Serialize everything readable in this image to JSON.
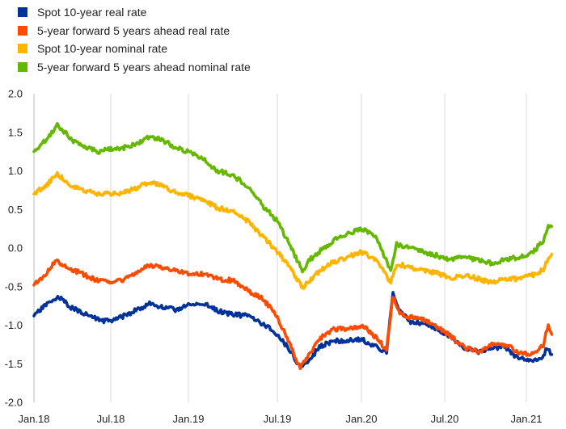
{
  "chart_data": {
    "type": "line",
    "title": "",
    "xlabel": "",
    "ylabel": "",
    "ylim": [
      -2.0,
      2.0
    ],
    "y_ticks": [
      "2.0",
      "1.5",
      "1.0",
      "0.5",
      "0.0",
      "-0.5",
      "-1.0",
      "-1.5",
      "-2.0"
    ],
    "x_ticks": [
      "Jan.18",
      "Jul.18",
      "Jan.19",
      "Jul.19",
      "Jan.20",
      "Jul.20",
      "Jan.21"
    ],
    "grid": {
      "vertical": true,
      "horizontal": false
    },
    "legend_position": "top-left",
    "series": [
      {
        "name": "Spot 10-year real rate",
        "color": "#003299",
        "points": [
          [
            "2018-01-01",
            -0.88
          ],
          [
            "2018-02-01",
            -0.72
          ],
          [
            "2018-03-01",
            -0.64
          ],
          [
            "2018-04-01",
            -0.78
          ],
          [
            "2018-05-01",
            -0.85
          ],
          [
            "2018-06-01",
            -0.93
          ],
          [
            "2018-07-01",
            -0.95
          ],
          [
            "2018-08-01",
            -0.88
          ],
          [
            "2018-09-01",
            -0.8
          ],
          [
            "2018-10-01",
            -0.72
          ],
          [
            "2018-11-01",
            -0.77
          ],
          [
            "2018-12-01",
            -0.8
          ],
          [
            "2019-01-01",
            -0.74
          ],
          [
            "2019-02-01",
            -0.72
          ],
          [
            "2019-03-01",
            -0.81
          ],
          [
            "2019-04-01",
            -0.86
          ],
          [
            "2019-05-01",
            -0.88
          ],
          [
            "2019-06-01",
            -0.98
          ],
          [
            "2019-07-01",
            -1.12
          ],
          [
            "2019-08-01",
            -1.35
          ],
          [
            "2019-08-20",
            -1.55
          ],
          [
            "2019-09-10",
            -1.45
          ],
          [
            "2019-10-01",
            -1.28
          ],
          [
            "2019-11-01",
            -1.2
          ],
          [
            "2019-12-01",
            -1.2
          ],
          [
            "2020-01-01",
            -1.18
          ],
          [
            "2020-02-01",
            -1.28
          ],
          [
            "2020-02-25",
            -1.35
          ],
          [
            "2020-03-10",
            -0.58
          ],
          [
            "2020-03-25",
            -0.82
          ],
          [
            "2020-04-15",
            -0.95
          ],
          [
            "2020-05-15",
            -0.98
          ],
          [
            "2020-06-15",
            -1.05
          ],
          [
            "2020-07-15",
            -1.15
          ],
          [
            "2020-08-15",
            -1.3
          ],
          [
            "2020-09-15",
            -1.35
          ],
          [
            "2020-10-15",
            -1.28
          ],
          [
            "2020-11-15",
            -1.3
          ],
          [
            "2020-12-15",
            -1.43
          ],
          [
            "2021-01-15",
            -1.48
          ],
          [
            "2021-02-05",
            -1.4
          ],
          [
            "2021-02-12",
            -1.28
          ],
          [
            "2021-02-22",
            -1.38
          ]
        ]
      },
      {
        "name": "5-year forward 5 years ahead real rate",
        "color": "#ff4b00",
        "points": [
          [
            "2018-01-01",
            -0.48
          ],
          [
            "2018-02-01",
            -0.32
          ],
          [
            "2018-02-20",
            -0.16
          ],
          [
            "2018-03-15",
            -0.22
          ],
          [
            "2018-04-01",
            -0.28
          ],
          [
            "2018-05-01",
            -0.35
          ],
          [
            "2018-06-01",
            -0.43
          ],
          [
            "2018-07-01",
            -0.44
          ],
          [
            "2018-08-01",
            -0.42
          ],
          [
            "2018-09-01",
            -0.32
          ],
          [
            "2018-10-01",
            -0.22
          ],
          [
            "2018-11-01",
            -0.25
          ],
          [
            "2018-12-01",
            -0.28
          ],
          [
            "2019-01-01",
            -0.33
          ],
          [
            "2019-02-01",
            -0.33
          ],
          [
            "2019-03-01",
            -0.4
          ],
          [
            "2019-04-01",
            -0.42
          ],
          [
            "2019-05-01",
            -0.55
          ],
          [
            "2019-06-01",
            -0.65
          ],
          [
            "2019-07-01",
            -0.9
          ],
          [
            "2019-08-01",
            -1.3
          ],
          [
            "2019-08-20",
            -1.55
          ],
          [
            "2019-09-10",
            -1.38
          ],
          [
            "2019-10-01",
            -1.18
          ],
          [
            "2019-11-01",
            -1.05
          ],
          [
            "2019-12-01",
            -1.05
          ],
          [
            "2020-01-01",
            -1.0
          ],
          [
            "2020-02-01",
            -1.15
          ],
          [
            "2020-02-25",
            -1.32
          ],
          [
            "2020-03-10",
            -0.62
          ],
          [
            "2020-03-25",
            -0.85
          ],
          [
            "2020-04-15",
            -0.9
          ],
          [
            "2020-05-15",
            -0.92
          ],
          [
            "2020-06-15",
            -1.02
          ],
          [
            "2020-07-15",
            -1.15
          ],
          [
            "2020-08-15",
            -1.28
          ],
          [
            "2020-09-15",
            -1.35
          ],
          [
            "2020-10-15",
            -1.25
          ],
          [
            "2020-11-15",
            -1.26
          ],
          [
            "2020-12-15",
            -1.35
          ],
          [
            "2021-01-15",
            -1.38
          ],
          [
            "2021-02-05",
            -1.25
          ],
          [
            "2021-02-15",
            -0.98
          ],
          [
            "2021-02-22",
            -1.12
          ]
        ]
      },
      {
        "name": "Spot 10-year nominal rate",
        "color": "#ffb400",
        "points": [
          [
            "2018-01-01",
            0.7
          ],
          [
            "2018-02-01",
            0.82
          ],
          [
            "2018-02-25",
            0.96
          ],
          [
            "2018-03-15",
            0.88
          ],
          [
            "2018-04-01",
            0.8
          ],
          [
            "2018-05-01",
            0.75
          ],
          [
            "2018-06-01",
            0.7
          ],
          [
            "2018-07-01",
            0.7
          ],
          [
            "2018-08-01",
            0.72
          ],
          [
            "2018-09-01",
            0.78
          ],
          [
            "2018-10-01",
            0.86
          ],
          [
            "2018-11-01",
            0.8
          ],
          [
            "2018-12-01",
            0.72
          ],
          [
            "2019-01-01",
            0.68
          ],
          [
            "2019-02-01",
            0.62
          ],
          [
            "2019-03-01",
            0.52
          ],
          [
            "2019-04-01",
            0.48
          ],
          [
            "2019-05-01",
            0.35
          ],
          [
            "2019-06-01",
            0.15
          ],
          [
            "2019-07-01",
            -0.05
          ],
          [
            "2019-08-01",
            -0.28
          ],
          [
            "2019-08-25",
            -0.52
          ],
          [
            "2019-09-10",
            -0.42
          ],
          [
            "2019-10-01",
            -0.3
          ],
          [
            "2019-11-01",
            -0.18
          ],
          [
            "2019-12-01",
            -0.12
          ],
          [
            "2020-01-01",
            -0.05
          ],
          [
            "2020-02-01",
            -0.15
          ],
          [
            "2020-03-05",
            -0.45
          ],
          [
            "2020-03-18",
            -0.2
          ],
          [
            "2020-04-15",
            -0.25
          ],
          [
            "2020-05-15",
            -0.3
          ],
          [
            "2020-06-15",
            -0.32
          ],
          [
            "2020-07-15",
            -0.4
          ],
          [
            "2020-08-15",
            -0.35
          ],
          [
            "2020-09-15",
            -0.4
          ],
          [
            "2020-10-15",
            -0.45
          ],
          [
            "2020-11-15",
            -0.4
          ],
          [
            "2020-12-15",
            -0.4
          ],
          [
            "2021-01-15",
            -0.35
          ],
          [
            "2021-02-05",
            -0.28
          ],
          [
            "2021-02-15",
            -0.12
          ],
          [
            "2021-02-22",
            -0.08
          ]
        ]
      },
      {
        "name": "5-year forward 5 years ahead nominal rate",
        "color": "#65b800",
        "points": [
          [
            "2018-01-01",
            1.25
          ],
          [
            "2018-02-01",
            1.42
          ],
          [
            "2018-02-25",
            1.6
          ],
          [
            "2018-03-15",
            1.5
          ],
          [
            "2018-04-01",
            1.4
          ],
          [
            "2018-05-01",
            1.32
          ],
          [
            "2018-06-01",
            1.25
          ],
          [
            "2018-07-01",
            1.28
          ],
          [
            "2018-08-01",
            1.3
          ],
          [
            "2018-09-01",
            1.35
          ],
          [
            "2018-10-01",
            1.45
          ],
          [
            "2018-11-01",
            1.4
          ],
          [
            "2018-12-01",
            1.3
          ],
          [
            "2019-01-01",
            1.25
          ],
          [
            "2019-02-01",
            1.15
          ],
          [
            "2019-03-01",
            1.0
          ],
          [
            "2019-04-01",
            0.95
          ],
          [
            "2019-05-01",
            0.8
          ],
          [
            "2019-06-01",
            0.55
          ],
          [
            "2019-07-01",
            0.35
          ],
          [
            "2019-08-01",
            0.0
          ],
          [
            "2019-08-25",
            -0.3
          ],
          [
            "2019-09-10",
            -0.15
          ],
          [
            "2019-10-01",
            -0.05
          ],
          [
            "2019-11-01",
            0.1
          ],
          [
            "2019-12-01",
            0.18
          ],
          [
            "2020-01-01",
            0.25
          ],
          [
            "2020-02-01",
            0.15
          ],
          [
            "2020-03-05",
            -0.3
          ],
          [
            "2020-03-18",
            0.05
          ],
          [
            "2020-04-15",
            0.0
          ],
          [
            "2020-05-15",
            -0.05
          ],
          [
            "2020-06-15",
            -0.1
          ],
          [
            "2020-07-15",
            -0.15
          ],
          [
            "2020-08-15",
            -0.12
          ],
          [
            "2020-09-15",
            -0.15
          ],
          [
            "2020-10-15",
            -0.2
          ],
          [
            "2020-11-15",
            -0.15
          ],
          [
            "2020-12-15",
            -0.12
          ],
          [
            "2021-01-15",
            -0.05
          ],
          [
            "2021-02-05",
            0.1
          ],
          [
            "2021-02-15",
            0.3
          ],
          [
            "2021-02-22",
            0.28
          ]
        ]
      }
    ]
  }
}
